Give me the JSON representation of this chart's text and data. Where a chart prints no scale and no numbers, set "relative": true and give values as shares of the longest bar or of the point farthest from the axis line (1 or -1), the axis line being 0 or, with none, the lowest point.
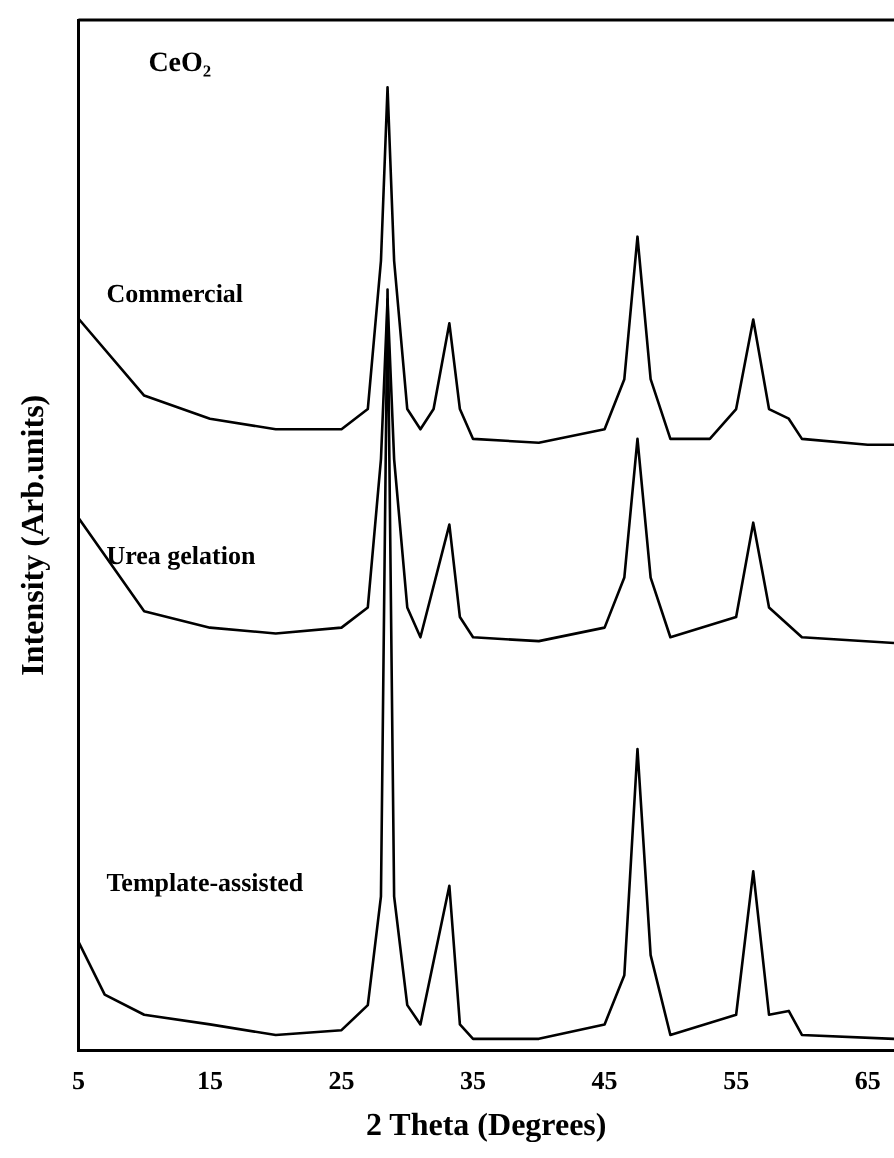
{
  "chart_data": {
    "type": "line",
    "relative": true,
    "xlabel": "2 Theta (Degrees)",
    "ylabel": "Intensity (Arb.units)",
    "annotations": [
      "CeO₂"
    ],
    "xlim": [
      5,
      67
    ],
    "xticks": [
      5,
      15,
      25,
      35,
      45,
      55,
      65
    ],
    "grid": false,
    "legend": false,
    "marker": "none",
    "line_style": "solid",
    "series": [
      {
        "name": "Commercial",
        "color": "#000000",
        "x": [
          5,
          10,
          15,
          20,
          25,
          27,
          28,
          28.5,
          29,
          30,
          31,
          32,
          33.2,
          34,
          35,
          40,
          45,
          46.5,
          47.5,
          48.5,
          50,
          53,
          55,
          56.3,
          57.5,
          59,
          60,
          65,
          67
        ],
        "values": [
          0.76,
          0.68,
          0.656,
          0.645,
          0.645,
          0.666,
          0.82,
          1.0,
          0.82,
          0.666,
          0.645,
          0.666,
          0.755,
          0.666,
          0.635,
          0.631,
          0.645,
          0.697,
          0.845,
          0.697,
          0.635,
          0.635,
          0.666,
          0.759,
          0.666,
          0.656,
          0.635,
          0.629,
          0.629
        ]
      },
      {
        "name": "Urea gelation",
        "color": "#000000",
        "x": [
          5,
          10,
          15,
          20,
          25,
          27,
          28,
          28.5,
          29,
          30,
          31,
          33.2,
          34,
          35,
          40,
          45,
          46.5,
          47.5,
          48.5,
          50,
          55,
          56.3,
          57.5,
          60,
          67
        ],
        "values": [
          0.553,
          0.456,
          0.439,
          0.433,
          0.439,
          0.46,
          0.614,
          0.78,
          0.614,
          0.46,
          0.429,
          0.546,
          0.45,
          0.429,
          0.425,
          0.439,
          0.491,
          0.635,
          0.491,
          0.429,
          0.45,
          0.548,
          0.46,
          0.429,
          0.423
        ]
      },
      {
        "name": "Template-assisted",
        "color": "#000000",
        "x": [
          5,
          7,
          10,
          15,
          20,
          25,
          27,
          28,
          28.5,
          29,
          30,
          31,
          33.2,
          34,
          35,
          40,
          45,
          46.5,
          47.5,
          48.5,
          50,
          55,
          56.3,
          57.5,
          59,
          60,
          67
        ],
        "values": [
          0.113,
          0.058,
          0.037,
          0.027,
          0.016,
          0.021,
          0.047,
          0.16,
          0.79,
          0.16,
          0.047,
          0.027,
          0.171,
          0.027,
          0.012,
          0.012,
          0.027,
          0.078,
          0.313,
          0.099,
          0.016,
          0.037,
          0.186,
          0.037,
          0.041,
          0.016,
          0.012
        ]
      }
    ]
  }
}
